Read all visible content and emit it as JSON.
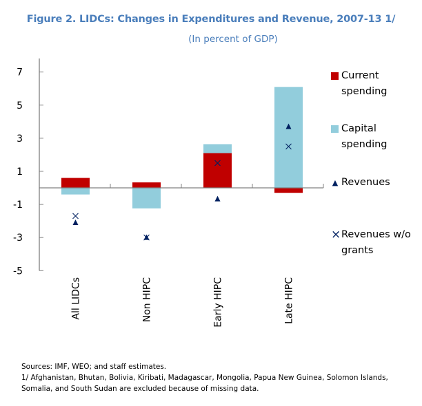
{
  "figure": {
    "title": "Figure 2. LIDCs: Changes in Expenditures and Revenue, 2007-13 1/",
    "subtitle": "(In percent of GDP)"
  },
  "colors": {
    "current_spending": "#c00000",
    "capital_spending": "#92cddc",
    "markers": "#002060",
    "axis": "#808080",
    "title": "#4a7ebb"
  },
  "chart_data": {
    "type": "bar",
    "subtype": "stacked-bar-with-markers",
    "title": "Figure 2. LIDCs: Changes in Expenditures and Revenue, 2007-13 1/",
    "subtitle": "(In percent of GDP)",
    "xlabel": "",
    "ylabel": "",
    "categories": [
      "All LIDCs",
      "Non HIPC",
      "Early HIPC",
      "Late HIPC"
    ],
    "ylim": [
      -5,
      8
    ],
    "yticks": [
      7,
      5,
      3,
      1,
      -1,
      -3,
      -5
    ],
    "ytick_labels": [
      "7",
      "5",
      "3",
      "1",
      "-1",
      "-3",
      "-5"
    ],
    "grid": false,
    "legend_position": "right",
    "series": [
      {
        "name": "Current spending",
        "kind": "bar",
        "color": "#c00000",
        "values": [
          0.6,
          0.33,
          2.1,
          -0.3
        ]
      },
      {
        "name": "Capital spending",
        "kind": "bar",
        "color": "#92cddc",
        "values": [
          -0.4,
          -1.24,
          0.54,
          6.1
        ]
      },
      {
        "name": "Revenues",
        "kind": "marker",
        "marker": "triangle",
        "color": "#002060",
        "values": [
          -2.1,
          -3.0,
          -0.67,
          3.7
        ]
      },
      {
        "name": "Revenues w/o grants",
        "kind": "marker",
        "marker": "x",
        "color": "#002060",
        "values": [
          -1.7,
          -3.0,
          1.5,
          2.5
        ]
      }
    ]
  },
  "legend": {
    "items": [
      {
        "line1": "Current",
        "line2": "spending",
        "symbol": "square",
        "color": "#c00000"
      },
      {
        "line1": "Capital",
        "line2": "spending",
        "symbol": "square",
        "color": "#92cddc"
      },
      {
        "line1": "Revenues",
        "line2": "",
        "symbol": "triangle",
        "glyph": "▲",
        "color": "#002060"
      },
      {
        "line1": "Revenues w/o",
        "line2": "grants",
        "symbol": "x",
        "glyph": "×",
        "color": "#002060"
      }
    ]
  },
  "notes": {
    "sources": "Sources: IMF, WEO; and staff estimates.",
    "footnote": "1/ Afghanistan, Bhutan, Bolivia, Kiribati, Madagascar, Mongolia, Papua New Guinea, Solomon Islands, Somalia, and South Sudan are excluded because of missing data."
  }
}
